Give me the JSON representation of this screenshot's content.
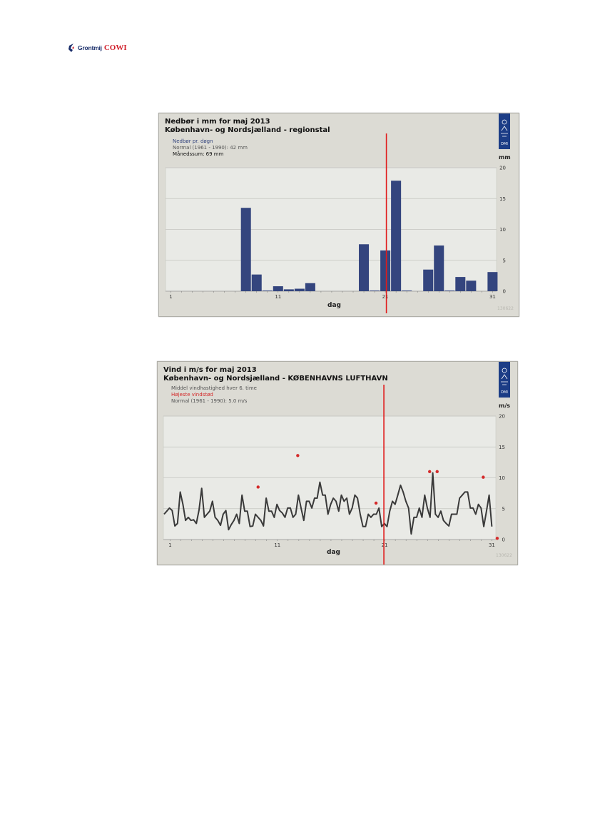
{
  "header": {
    "logo_text_1": "Grontmij",
    "logo_text_2": "COWI"
  },
  "charts": [
    {
      "title_line1": "Nedbør i mm for maj 2013",
      "title_line2": "København- og Nordsjælland - regionstal",
      "legend": [
        "Nedbør pr. døgn",
        "Normal (1961 - 1990): 42 mm",
        "Månedssum: 69 mm"
      ],
      "ylabel": "mm",
      "xlabel": "dag",
      "stamp": "130622",
      "logo_label": "DMI"
    },
    {
      "title_line1": "Vind i m/s for maj 2013",
      "title_line2": "København- og Nordsjælland - KØBENHAVNS LUFTHAVN",
      "legend": [
        "Middel vindhastighed hver 6. time",
        "Højeste vindstød",
        "Normal (1961 - 1990): 5.0 m/s"
      ],
      "ylabel": "m/s",
      "xlabel": "dag",
      "stamp": "130622",
      "logo_label": "DMI"
    }
  ],
  "chart_data": [
    {
      "type": "bar",
      "title": "Nedbør i mm for maj 2013",
      "subtitle": "København- og Nordsjælland - regionstal",
      "xlabel": "dag",
      "ylabel": "mm",
      "x": [
        1,
        2,
        3,
        4,
        5,
        6,
        7,
        8,
        9,
        10,
        11,
        12,
        13,
        14,
        15,
        16,
        17,
        18,
        19,
        20,
        21,
        22,
        23,
        24,
        25,
        26,
        27,
        28,
        29,
        30,
        31
      ],
      "series": [
        {
          "name": "Nedbør pr. døgn",
          "values": [
            0,
            0,
            0,
            0,
            0,
            0,
            0,
            13.5,
            2.7,
            0.1,
            0.8,
            0.3,
            0.4,
            1.3,
            0,
            0,
            0,
            0,
            7.6,
            0.1,
            6.6,
            17.9,
            0.1,
            0,
            3.5,
            7.4,
            0.1,
            2.3,
            1.7,
            0,
            3.1
          ]
        }
      ],
      "xticks": [
        1,
        11,
        21,
        31
      ],
      "ylim": [
        0,
        20
      ],
      "yticks": [
        0,
        5,
        10,
        15,
        20
      ],
      "grid": true,
      "marker_day": 21,
      "colors": {
        "bar": "#34457e",
        "marker": "#e01b1b",
        "plot_bg": "#e9eae6"
      }
    },
    {
      "type": "line",
      "title": "Vind i m/s for maj 2013",
      "subtitle": "København- og Nordsjælland - KØBENHAVNS LUFTHAVN",
      "xlabel": "dag",
      "ylabel": "m/s",
      "xlim": [
        1,
        31.5
      ],
      "xticks": [
        1,
        11,
        21,
        31
      ],
      "ylim": [
        0,
        20
      ],
      "yticks": [
        0,
        5,
        10,
        15,
        20
      ],
      "grid": true,
      "series": [
        {
          "name": "Middel vindhastighed hver 6. time",
          "values": [
            4.1,
            4.6,
            5.1,
            4.7,
            2.2,
            2.6,
            7.7,
            5.7,
            3.1,
            3.6,
            3.1,
            3.2,
            2.6,
            4.8,
            8.3,
            3.6,
            4.1,
            4.6,
            6.2,
            3.6,
            3.1,
            2.3,
            4.1,
            4.7,
            1.6,
            2.4,
            3.1,
            4.1,
            2.6,
            7.2,
            4.6,
            4.6,
            2.1,
            2.2,
            4.1,
            3.6,
            3.1,
            2.2,
            6.7,
            4.6,
            4.6,
            3.6,
            5.7,
            4.7,
            4.3,
            3.6,
            5.1,
            5.1,
            3.6,
            4.1,
            7.2,
            5.1,
            3.1,
            6.2,
            6.2,
            5.1,
            6.7,
            6.7,
            9.3,
            7.2,
            7.2,
            4.1,
            5.7,
            6.7,
            6.2,
            4.6,
            7.2,
            6.2,
            6.7,
            4.1,
            5.1,
            7.2,
            6.7,
            4.1,
            2.1,
            2.1,
            4.1,
            3.6,
            4.1,
            4.1,
            5.1,
            2.1,
            2.6,
            2.1,
            4.6,
            6.2,
            5.7,
            7.2,
            8.8,
            7.7,
            6.2,
            5.1,
            0.9,
            3.6,
            3.6,
            5.1,
            3.6,
            7.2,
            5.1,
            3.6,
            10.8,
            4.1,
            3.6,
            4.6,
            3.1,
            2.6,
            2.2,
            4.1,
            4.1,
            4.1,
            6.7,
            7.2,
            7.7,
            7.7,
            5.1,
            5.1,
            4.1,
            5.7,
            5.1,
            2.1,
            4.6,
            7.2,
            2.1
          ]
        },
        {
          "name": "Højeste vindstød",
          "type": "scatter",
          "points": [
            [
              9.2,
              8.5
            ],
            [
              12.9,
              13.6
            ],
            [
              20.2,
              5.9
            ],
            [
              25.2,
              11.0
            ],
            [
              25.9,
              11.0
            ],
            [
              30.2,
              10.1
            ],
            [
              31.5,
              0.2
            ]
          ]
        }
      ],
      "marker_day": 21,
      "normal": 5.0,
      "colors": {
        "line": "#3a3a3a",
        "gust": "#d42a2a",
        "marker": "#e01b1b",
        "plot_bg": "#e9eae6"
      }
    }
  ]
}
